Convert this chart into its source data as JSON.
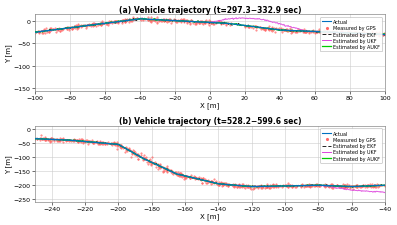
{
  "title_a": "(a) Vehicle trajectory (t=297.3−332.9 sec)",
  "title_b": "(b) Vehicle trajectory (t=528.2−599.6 sec)",
  "xlabel": "X [m]",
  "ylabel": "Y [m]",
  "panel_a": {
    "xlim": [
      -100,
      100
    ],
    "ylim": [
      -155,
      15
    ],
    "xticks": [
      -100,
      -80,
      -60,
      -40,
      -20,
      0,
      20,
      40,
      60,
      80,
      100
    ],
    "yticks": [
      -150,
      -100,
      -50,
      0
    ]
  },
  "panel_b": {
    "xlim": [
      -250,
      -40
    ],
    "ylim": [
      -260,
      10
    ],
    "xticks": [
      -240,
      -220,
      -200,
      -180,
      -160,
      -140,
      -120,
      -100,
      -80,
      -60,
      -40
    ],
    "yticks": [
      -250,
      -200,
      -150,
      -100,
      -50,
      0
    ]
  },
  "colors": {
    "actual": "#0070c0",
    "gps": "#ff6666",
    "ekf": "#222222",
    "ukf": "#dd44dd",
    "aukf": "#00cc00"
  },
  "legend_labels": [
    "Actual",
    "Measured by GPS",
    "Estimated by EKF",
    "Estimated by UKF",
    "Estimated by AUKF"
  ],
  "bg_color": "#ffffff"
}
